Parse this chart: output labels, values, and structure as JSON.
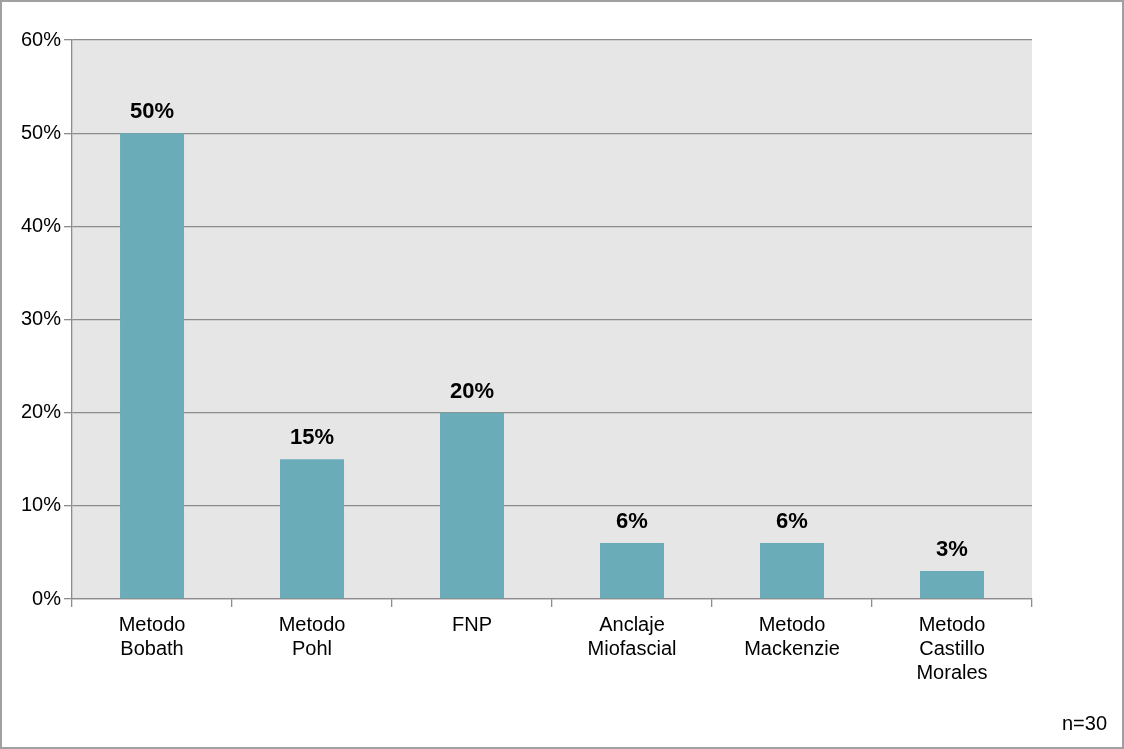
{
  "chart_data": {
    "type": "bar",
    "categories": [
      "Metodo Bobath",
      "Metodo Pohl",
      "FNP",
      "Anclaje Miofascial",
      "Metodo Mackenzie",
      "Metodo Castillo Morales"
    ],
    "values": [
      50,
      15,
      20,
      6,
      6,
      3
    ],
    "value_labels": [
      "50%",
      "15%",
      "20%",
      "6%",
      "6%",
      "3%"
    ],
    "color": "#6aacb8",
    "ylim": [
      0,
      60
    ],
    "yticks": [
      {
        "value": 0,
        "label": "0%"
      },
      {
        "value": 10,
        "label": "10%"
      },
      {
        "value": 20,
        "label": "20%"
      },
      {
        "value": 30,
        "label": "30%"
      },
      {
        "value": 40,
        "label": "40%"
      },
      {
        "value": 50,
        "label": "50%"
      },
      {
        "value": 60,
        "label": "60%"
      }
    ],
    "grid": "y",
    "legend": false,
    "annotations": [
      "n=30"
    ]
  }
}
